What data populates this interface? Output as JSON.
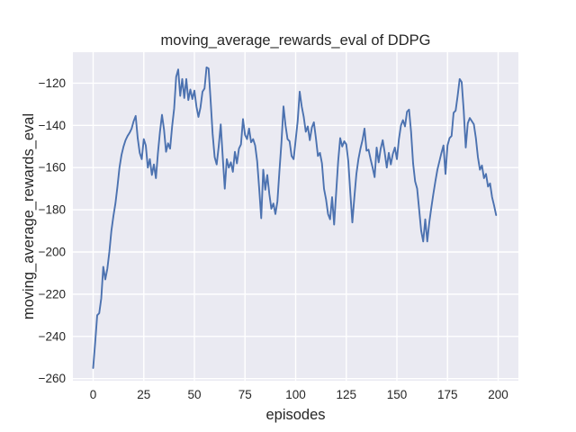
{
  "figure": {
    "title": "moving_average_rewards_eval of DDPG"
  },
  "chart_data": {
    "type": "line",
    "title": "moving_average_rewards_eval of DDPG",
    "xlabel": "episodes",
    "ylabel": "moving_average_rewards_eval",
    "x_start": 0,
    "x_step": 1,
    "xlim": [
      -10,
      210
    ],
    "ylim": [
      -261,
      -105.3
    ],
    "x_ticks": [
      0,
      25,
      50,
      75,
      100,
      125,
      150,
      175,
      200
    ],
    "y_ticks": [
      -260,
      -240,
      -220,
      -200,
      -180,
      -160,
      -140,
      -120
    ],
    "grid": true,
    "legend": null,
    "style": {
      "line_color": "#4c72b0",
      "plot_bg": "#eaeaf2",
      "grid_color": "#ffffff",
      "text_color": "#262626",
      "fig_bg": "#ffffff",
      "line_width": 1.9,
      "grid_width": 1.4
    },
    "series": [
      {
        "name": "moving_average_rewards_eval",
        "values": [
          -255,
          -243,
          -230,
          -229,
          -222,
          -207,
          -213,
          -208,
          -200,
          -190,
          -183,
          -177,
          -169,
          -160,
          -154,
          -150,
          -147,
          -145,
          -143.5,
          -141.5,
          -138,
          -135.5,
          -146,
          -153,
          -156,
          -146.5,
          -149.5,
          -160,
          -156,
          -163.5,
          -158.5,
          -165,
          -153,
          -143,
          -135,
          -142,
          -152.5,
          -148.5,
          -151,
          -140.5,
          -132,
          -117,
          -113.5,
          -126,
          -118,
          -127,
          -118,
          -128,
          -123,
          -127.5,
          -123.5,
          -131,
          -136,
          -131.5,
          -124,
          -122.5,
          -112.5,
          -113,
          -128,
          -144,
          -155,
          -158.5,
          -150,
          -139.5,
          -155,
          -170,
          -156,
          -160,
          -157.5,
          -162,
          -152.5,
          -158,
          -151,
          -149,
          -137,
          -144.5,
          -146.5,
          -141.5,
          -148,
          -146.5,
          -149.5,
          -157,
          -170,
          -184,
          -161,
          -170.5,
          -163.5,
          -172.5,
          -179.5,
          -177,
          -182,
          -176,
          -161.5,
          -148,
          -131,
          -140,
          -146.5,
          -147.5,
          -154.5,
          -156,
          -147,
          -138,
          -124,
          -131,
          -136,
          -143,
          -140.5,
          -147,
          -141,
          -138.5,
          -146,
          -154.5,
          -153,
          -158,
          -170,
          -175,
          -182,
          -184.5,
          -174,
          -187,
          -172,
          -157,
          -146,
          -150,
          -147.5,
          -149,
          -157,
          -172,
          -186,
          -174,
          -163,
          -156,
          -151,
          -147,
          -141.5,
          -152,
          -151.5,
          -156,
          -160,
          -164.5,
          -150.5,
          -157.5,
          -151,
          -147,
          -153,
          -160,
          -153,
          -158.5,
          -153.5,
          -150.5,
          -156,
          -146.5,
          -140,
          -137.5,
          -140.5,
          -133.5,
          -132.5,
          -143,
          -158,
          -166.5,
          -170,
          -180,
          -190,
          -195,
          -184.5,
          -195,
          -186,
          -179,
          -172.5,
          -166.5,
          -161,
          -157,
          -153,
          -149.5,
          -163,
          -149.5,
          -146,
          -145,
          -134,
          -133,
          -126,
          -118,
          -119.5,
          -133,
          -150.5,
          -139,
          -136.5,
          -138,
          -139.5,
          -146,
          -155,
          -161,
          -159,
          -165,
          -163,
          -169,
          -167.5,
          -174,
          -178,
          -182.5
        ]
      }
    ]
  }
}
